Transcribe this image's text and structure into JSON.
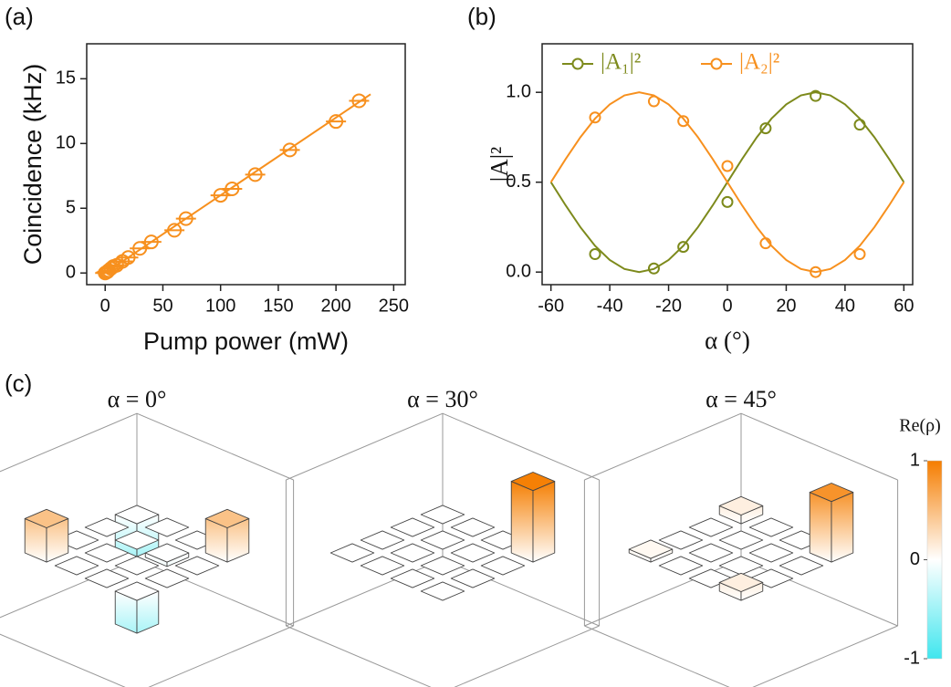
{
  "chart_data": [
    {
      "type": "scatter",
      "panel_label": "(a)",
      "xlabel": "Pump power (mW)",
      "ylabel": "Coincidence (kHz)",
      "x": [
        0,
        1,
        2,
        3,
        5,
        7,
        10,
        15,
        20,
        30,
        40,
        60,
        70,
        100,
        110,
        130,
        160,
        200,
        220
      ],
      "series": [
        {
          "color": "#f7901e",
          "values": [
            0,
            0.05,
            0.1,
            0.2,
            0.35,
            0.5,
            0.6,
            0.9,
            1.2,
            1.9,
            2.4,
            3.3,
            4.2,
            6.0,
            6.5,
            7.6,
            9.5,
            11.7,
            13.3
          ],
          "fit": [
            0,
            13.8
          ]
        }
      ],
      "fit_x": [
        0,
        230
      ],
      "marker": "circle-bar",
      "xlim": [
        -16,
        260
      ],
      "ylim": [
        -0.9,
        17.7
      ],
      "xticks": [
        0,
        50,
        100,
        150,
        200,
        250
      ],
      "yticks": [
        0,
        5,
        10,
        15
      ]
    },
    {
      "type": "scatter",
      "panel_label": "(b)",
      "xlabel": "α (°)",
      "ylabel": "|A|²",
      "x": [
        -45,
        -25,
        -15,
        0,
        13,
        30,
        45
      ],
      "series": [
        {
          "name": "|A₁|²",
          "color": "#7d8a1c",
          "values": [
            0.1,
            0.02,
            0.14,
            0.39,
            0.8,
            0.98,
            0.82
          ],
          "fit": [
            0.5,
            0.371,
            0.25,
            0.146,
            0.067,
            0.017,
            0,
            0.017,
            0.067,
            0.146,
            0.25,
            0.371,
            0.5,
            0.629,
            0.75,
            0.854,
            0.933,
            0.983,
            1,
            0.983,
            0.933,
            0.854,
            0.75,
            0.629,
            0.5
          ]
        },
        {
          "name": "|A₂|²",
          "color": "#f7901e",
          "values": [
            0.86,
            0.95,
            0.84,
            0.59,
            0.16,
            0.0,
            0.1
          ],
          "fit": [
            0.5,
            0.629,
            0.75,
            0.854,
            0.933,
            0.983,
            1,
            0.983,
            0.933,
            0.854,
            0.75,
            0.629,
            0.5,
            0.371,
            0.25,
            0.146,
            0.067,
            0.017,
            0,
            0.017,
            0.067,
            0.146,
            0.25,
            0.371,
            0.5
          ]
        }
      ],
      "fit_x": [
        -60,
        -55,
        -50,
        -45,
        -40,
        -35,
        -30,
        -25,
        -20,
        -15,
        -10,
        -5,
        0,
        5,
        10,
        15,
        20,
        25,
        30,
        35,
        40,
        45,
        50,
        55,
        60
      ],
      "marker": "circle",
      "legend": "upper left",
      "xlim": [
        -63,
        63
      ],
      "ylim": [
        -0.07,
        1.27
      ],
      "xticks": [
        -60,
        -40,
        -20,
        0,
        20,
        40,
        60
      ],
      "yticks": [
        {
          "value": 0,
          "label": "0.0"
        },
        0.5,
        {
          "value": 1,
          "label": "1.0"
        }
      ]
    },
    {
      "type": "bar3d",
      "panel_label": "(c)",
      "title": "α = 0°",
      "zlim": [
        -1,
        1
      ],
      "matrix": [
        [
          0.47,
          0,
          0,
          -0.45
        ],
        [
          0,
          0,
          0,
          0
        ],
        [
          0,
          0,
          -0.06,
          0
        ],
        [
          -0.45,
          0,
          0,
          0.47
        ]
      ]
    },
    {
      "type": "bar3d",
      "title": "α = 30°",
      "zlim": [
        -1,
        1
      ],
      "matrix": [
        [
          0,
          0,
          0,
          0
        ],
        [
          0,
          0,
          0,
          0
        ],
        [
          0,
          0,
          0,
          0
        ],
        [
          0,
          0,
          0,
          0.98
        ]
      ]
    },
    {
      "type": "bar3d",
      "title": "α = 45°",
      "zlim": [
        -1,
        1
      ],
      "matrix": [
        [
          0.05,
          0,
          0,
          0.12
        ],
        [
          0,
          0,
          0,
          0
        ],
        [
          0,
          0,
          0,
          0
        ],
        [
          0.12,
          0,
          0,
          0.83
        ]
      ]
    },
    {
      "type": "colorbar",
      "label": "Re(ρ)",
      "zlim": [
        -1,
        1
      ],
      "ticks": [
        -1,
        0,
        1
      ],
      "colors": [
        "#40e6ee",
        "#ffffff",
        "#f57d00"
      ]
    }
  ]
}
